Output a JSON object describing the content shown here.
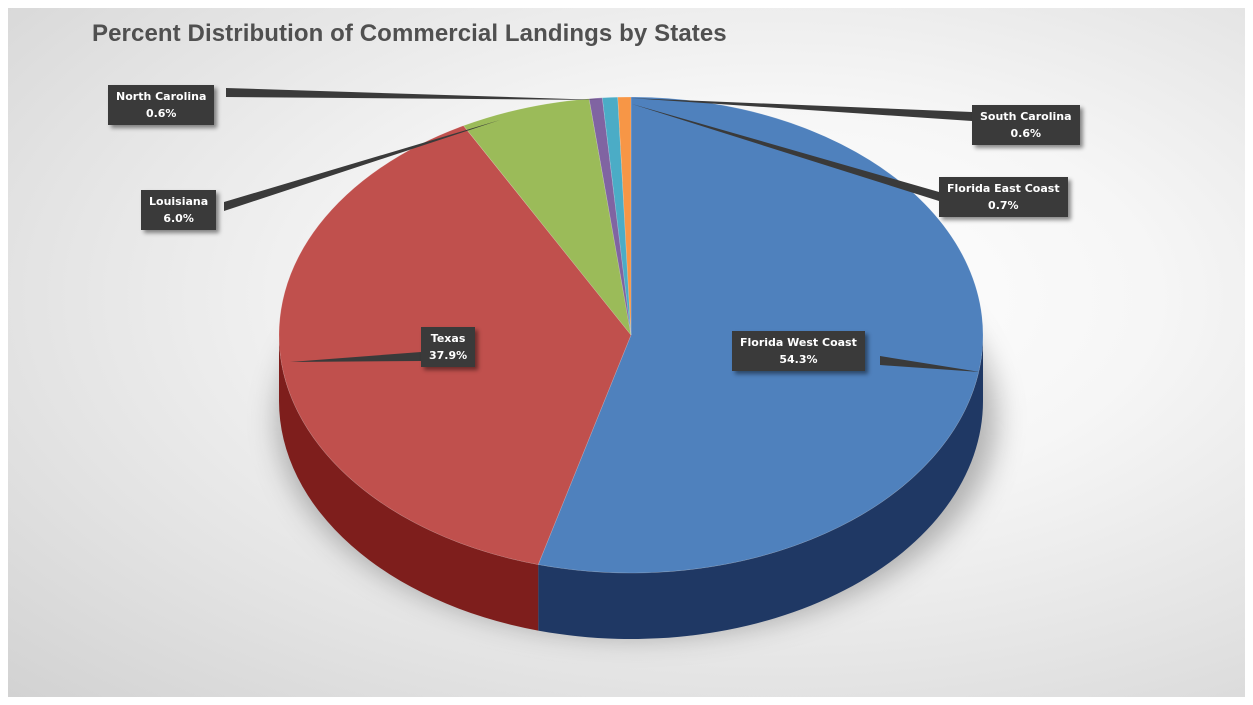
{
  "chart_data": {
    "type": "pie",
    "title": "Percent Distribution of Commercial Landings by States",
    "slices": [
      {
        "label": "Florida West Coast",
        "value": 54.3,
        "value_label": "54.3%",
        "color": "#4f81bd",
        "side_color": "#1f3864"
      },
      {
        "label": "Texas",
        "value": 37.9,
        "value_label": "37.9%",
        "color": "#c0504d",
        "side_color": "#7e1e1c"
      },
      {
        "label": "Louisiana",
        "value": 6.0,
        "value_label": "6.0%",
        "color": "#9bbb59",
        "side_color": "#5e7a2a"
      },
      {
        "label": "North Carolina",
        "value": 0.6,
        "value_label": "0.6%",
        "color": "#8064a2",
        "side_color": "#4a3566"
      },
      {
        "label": "Florida East Coast",
        "value": 0.7,
        "value_label": "0.7%",
        "color": "#4bacc6",
        "side_color": "#24687a"
      },
      {
        "label": "South Carolina",
        "value": 0.6,
        "value_label": "0.6%",
        "color": "#f79646",
        "side_color": "#a65c1c"
      }
    ],
    "legend": "none",
    "style": "3d-pie"
  }
}
